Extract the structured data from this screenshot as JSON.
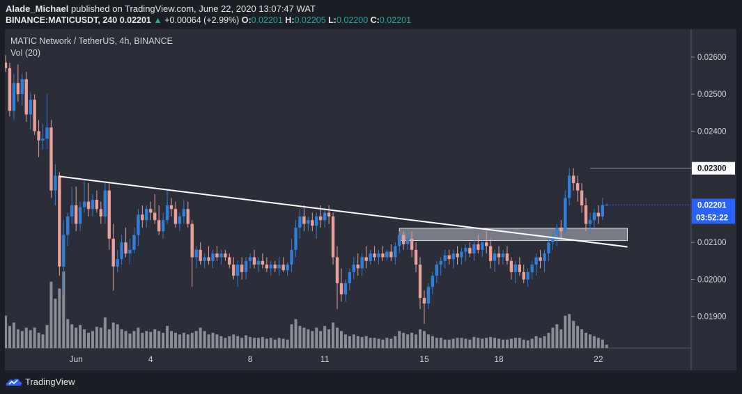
{
  "header": {
    "author": "Alade_Michael",
    "published_text": "published on TradingView.com, June 22, 2020 13:07:47 WAT",
    "symbol": "BINANCE:MATICUSDT, 240",
    "last": "0.02201",
    "change_arrow": "▲",
    "change": "+0.00064 (+2.99%)",
    "o_label": "O:",
    "o_value": "0.02201",
    "h_label": "H:",
    "h_value": "0.02205",
    "l_label": "L:",
    "l_value": "0.02200",
    "c_label": "C:",
    "c_value": "0.02201"
  },
  "legend": {
    "title": "MATIC Network / TetherUS, 4h, BINANCE",
    "volume": "Vol (20)"
  },
  "footer": {
    "brand": "TradingView"
  },
  "colors": {
    "bull": "#2f7fd8",
    "bear": "#e8a09a",
    "volume": "#8a8d95",
    "trendline": "#ffffff",
    "zone": "#b8bcc6",
    "price_label": "#2962ff"
  },
  "chart_data": {
    "type": "candlestick",
    "timeframe": "4h",
    "y_ticks": [
      0.019,
      0.02,
      0.021,
      0.023,
      0.024,
      0.025,
      0.026
    ],
    "y_tick_labels": [
      "0.01900",
      "0.02000",
      "0.02100",
      "0.02300",
      "0.02400",
      "0.02500",
      "0.02600"
    ],
    "ylim": [
      0.01815,
      0.02675
    ],
    "x_tick_labels": [
      {
        "bar": 17,
        "label": "Jun"
      },
      {
        "bar": 35,
        "label": "4"
      },
      {
        "bar": 59,
        "label": "8"
      },
      {
        "bar": 77,
        "label": "11"
      },
      {
        "bar": 101,
        "label": "15"
      },
      {
        "bar": 119,
        "label": "18"
      },
      {
        "bar": 143,
        "label": "22"
      }
    ],
    "current_price": {
      "value": 0.02201,
      "label": "0.02201",
      "countdown": "03:52:22"
    },
    "resistance_label": {
      "value": 0.023,
      "label": "0.02300"
    },
    "trendline": {
      "start": {
        "bar": 13,
        "price": 0.02278
      },
      "end": {
        "bar": 150,
        "price": 0.02088
      }
    },
    "zone": {
      "bar_start": 95,
      "bar_end": 150,
      "top": 0.02138,
      "bottom": 0.02105
    },
    "candles": [
      [
        0.02585,
        0.02605,
        0.0256,
        0.0257,
        38
      ],
      [
        0.0257,
        0.02585,
        0.0244,
        0.02455,
        26
      ],
      [
        0.02455,
        0.02555,
        0.0243,
        0.0253,
        30
      ],
      [
        0.0253,
        0.0258,
        0.0248,
        0.025,
        22
      ],
      [
        0.025,
        0.02555,
        0.0247,
        0.0254,
        20
      ],
      [
        0.0254,
        0.0256,
        0.02425,
        0.02445,
        24
      ],
      [
        0.02445,
        0.02505,
        0.02405,
        0.02485,
        21
      ],
      [
        0.02485,
        0.025,
        0.0239,
        0.024,
        24
      ],
      [
        0.024,
        0.0243,
        0.0233,
        0.02375,
        18
      ],
      [
        0.02375,
        0.0242,
        0.0235,
        0.0238,
        16
      ],
      [
        0.0238,
        0.025,
        0.0235,
        0.0241,
        27
      ],
      [
        0.0241,
        0.0243,
        0.0222,
        0.0224,
        78
      ],
      [
        0.0224,
        0.0231,
        0.022,
        0.0228,
        58
      ],
      [
        0.0228,
        0.0229,
        0.0201,
        0.02035,
        70
      ],
      [
        0.02035,
        0.0216,
        0.0196,
        0.0212,
        90
      ],
      [
        0.0212,
        0.0218,
        0.0209,
        0.0217,
        34
      ],
      [
        0.0217,
        0.0225,
        0.0215,
        0.022,
        28
      ],
      [
        0.022,
        0.0225,
        0.0213,
        0.0215,
        24
      ],
      [
        0.0215,
        0.0221,
        0.0213,
        0.02195,
        27
      ],
      [
        0.02195,
        0.0227,
        0.0218,
        0.0221,
        22
      ],
      [
        0.0221,
        0.0226,
        0.0217,
        0.0219,
        18
      ],
      [
        0.0219,
        0.0223,
        0.0217,
        0.02215,
        20
      ],
      [
        0.02215,
        0.0224,
        0.0218,
        0.0219,
        25
      ],
      [
        0.0219,
        0.0221,
        0.0215,
        0.0217,
        24
      ],
      [
        0.0217,
        0.0226,
        0.0215,
        0.0224,
        36
      ],
      [
        0.0224,
        0.0226,
        0.0208,
        0.0211,
        22
      ],
      [
        0.0211,
        0.0215,
        0.0197,
        0.02035,
        30
      ],
      [
        0.02035,
        0.0208,
        0.0202,
        0.02055,
        28
      ],
      [
        0.02055,
        0.0212,
        0.0204,
        0.021,
        22
      ],
      [
        0.021,
        0.0214,
        0.0206,
        0.0207,
        20
      ],
      [
        0.0207,
        0.0211,
        0.0204,
        0.0208,
        17
      ],
      [
        0.0208,
        0.0214,
        0.0207,
        0.0212,
        20
      ],
      [
        0.0212,
        0.0219,
        0.0209,
        0.02175,
        24
      ],
      [
        0.02175,
        0.022,
        0.0214,
        0.0216,
        18
      ],
      [
        0.0216,
        0.022,
        0.0214,
        0.0219,
        20
      ],
      [
        0.0219,
        0.0221,
        0.0216,
        0.0218,
        19
      ],
      [
        0.0218,
        0.0223,
        0.0215,
        0.0216,
        22
      ],
      [
        0.0216,
        0.022,
        0.0212,
        0.0213,
        20
      ],
      [
        0.0213,
        0.0218,
        0.0211,
        0.0216,
        18
      ],
      [
        0.0216,
        0.0224,
        0.0215,
        0.022,
        26
      ],
      [
        0.022,
        0.0222,
        0.0217,
        0.0219,
        20
      ],
      [
        0.0219,
        0.0221,
        0.0214,
        0.0215,
        18
      ],
      [
        0.0215,
        0.0218,
        0.0213,
        0.0217,
        16
      ],
      [
        0.0217,
        0.02215,
        0.0215,
        0.0219,
        18
      ],
      [
        0.0219,
        0.0221,
        0.0214,
        0.0215,
        16
      ],
      [
        0.0215,
        0.0216,
        0.0198,
        0.0206,
        18
      ],
      [
        0.0206,
        0.0209,
        0.0203,
        0.0208,
        20
      ],
      [
        0.0208,
        0.021,
        0.0204,
        0.0205,
        24
      ],
      [
        0.0205,
        0.0207,
        0.0203,
        0.0206,
        20
      ],
      [
        0.0206,
        0.0209,
        0.0204,
        0.0205,
        16
      ],
      [
        0.0205,
        0.0208,
        0.0203,
        0.0207,
        18
      ],
      [
        0.0207,
        0.0209,
        0.0205,
        0.0206,
        16
      ],
      [
        0.0206,
        0.0208,
        0.0204,
        0.0207,
        14
      ],
      [
        0.0207,
        0.0208,
        0.0205,
        0.0206,
        12
      ],
      [
        0.0206,
        0.0207,
        0.0203,
        0.0204,
        14
      ],
      [
        0.0204,
        0.0206,
        0.02,
        0.0201,
        16
      ],
      [
        0.0201,
        0.0205,
        0.0198,
        0.0204,
        14
      ],
      [
        0.0204,
        0.0206,
        0.02,
        0.0202,
        12
      ],
      [
        0.0202,
        0.0206,
        0.02,
        0.0205,
        15
      ],
      [
        0.0205,
        0.0207,
        0.0203,
        0.0206,
        13
      ],
      [
        0.0206,
        0.0208,
        0.0203,
        0.0204,
        12
      ],
      [
        0.0204,
        0.0206,
        0.0202,
        0.0205,
        12
      ],
      [
        0.0205,
        0.0207,
        0.0203,
        0.0204,
        13
      ],
      [
        0.0204,
        0.0206,
        0.0202,
        0.0203,
        11
      ],
      [
        0.0203,
        0.0205,
        0.0201,
        0.0204,
        12
      ],
      [
        0.0204,
        0.0205,
        0.0202,
        0.0203,
        10
      ],
      [
        0.0203,
        0.0206,
        0.0201,
        0.0204,
        12
      ],
      [
        0.0204,
        0.0206,
        0.0202,
        0.02025,
        11
      ],
      [
        0.02025,
        0.02045,
        0.0201,
        0.0204,
        10
      ],
      [
        0.0204,
        0.0211,
        0.0202,
        0.0208,
        28
      ],
      [
        0.0208,
        0.0216,
        0.0206,
        0.0214,
        34
      ],
      [
        0.0214,
        0.0219,
        0.0211,
        0.0217,
        26
      ],
      [
        0.0217,
        0.022,
        0.0213,
        0.0215,
        24
      ],
      [
        0.0215,
        0.0217,
        0.0213,
        0.0216,
        22
      ],
      [
        0.0216,
        0.0218,
        0.0213,
        0.02145,
        20
      ],
      [
        0.02145,
        0.0218,
        0.0211,
        0.0217,
        24
      ],
      [
        0.0217,
        0.022,
        0.0214,
        0.0216,
        20
      ],
      [
        0.0216,
        0.02195,
        0.0214,
        0.0218,
        26
      ],
      [
        0.0218,
        0.022,
        0.0215,
        0.0217,
        22
      ],
      [
        0.0217,
        0.0218,
        0.0204,
        0.0206,
        30
      ],
      [
        0.0206,
        0.0209,
        0.0192,
        0.0199,
        24
      ],
      [
        0.0199,
        0.0203,
        0.0194,
        0.0196,
        20
      ],
      [
        0.0196,
        0.02,
        0.0194,
        0.0199,
        16
      ],
      [
        0.0199,
        0.0203,
        0.0197,
        0.0202,
        14
      ],
      [
        0.0202,
        0.0206,
        0.02,
        0.0204,
        16
      ],
      [
        0.0204,
        0.0207,
        0.0201,
        0.0203,
        14
      ],
      [
        0.0203,
        0.0207,
        0.0201,
        0.0206,
        13
      ],
      [
        0.0206,
        0.0209,
        0.0203,
        0.0205,
        14
      ],
      [
        0.0205,
        0.0208,
        0.0204,
        0.0207,
        12
      ],
      [
        0.0207,
        0.0209,
        0.0205,
        0.0206,
        12
      ],
      [
        0.0206,
        0.0208,
        0.0204,
        0.0207,
        11
      ],
      [
        0.0207,
        0.0209,
        0.0205,
        0.0206,
        10
      ],
      [
        0.0206,
        0.0208,
        0.0205,
        0.02075,
        12
      ],
      [
        0.02075,
        0.02095,
        0.0205,
        0.0206,
        11
      ],
      [
        0.0206,
        0.021,
        0.0204,
        0.0209,
        14
      ],
      [
        0.0209,
        0.0213,
        0.0207,
        0.0212,
        20
      ],
      [
        0.0212,
        0.0213,
        0.0208,
        0.02095,
        18
      ],
      [
        0.02095,
        0.0213,
        0.0208,
        0.0211,
        16
      ],
      [
        0.0211,
        0.0213,
        0.0206,
        0.0208,
        18
      ],
      [
        0.0208,
        0.021,
        0.0202,
        0.0204,
        16
      ],
      [
        0.0204,
        0.0206,
        0.0192,
        0.0195,
        22
      ],
      [
        0.0195,
        0.0197,
        0.0188,
        0.01935,
        20
      ],
      [
        0.01935,
        0.0199,
        0.0192,
        0.0198,
        16
      ],
      [
        0.0198,
        0.0202,
        0.0196,
        0.0201,
        14
      ],
      [
        0.0201,
        0.0205,
        0.0199,
        0.0204,
        12
      ],
      [
        0.0204,
        0.0206,
        0.0201,
        0.0205,
        12
      ],
      [
        0.0205,
        0.0208,
        0.0203,
        0.02065,
        10
      ],
      [
        0.02065,
        0.0208,
        0.0204,
        0.02055,
        10
      ],
      [
        0.02055,
        0.0208,
        0.0203,
        0.0207,
        11
      ],
      [
        0.0207,
        0.0209,
        0.0204,
        0.0206,
        12
      ],
      [
        0.0206,
        0.02085,
        0.0204,
        0.02075,
        12
      ],
      [
        0.02075,
        0.02095,
        0.0205,
        0.02085,
        11
      ],
      [
        0.02085,
        0.021,
        0.0206,
        0.0207,
        10
      ],
      [
        0.0207,
        0.0211,
        0.0205,
        0.02095,
        13
      ],
      [
        0.02095,
        0.0212,
        0.0207,
        0.0208,
        12
      ],
      [
        0.0208,
        0.0211,
        0.0206,
        0.021,
        11
      ],
      [
        0.021,
        0.0213,
        0.0207,
        0.0209,
        12
      ],
      [
        0.0209,
        0.0211,
        0.0203,
        0.0205,
        13
      ],
      [
        0.0205,
        0.0208,
        0.0202,
        0.0207,
        12
      ],
      [
        0.0207,
        0.0209,
        0.0204,
        0.0206,
        11
      ],
      [
        0.0206,
        0.0208,
        0.0204,
        0.0207,
        10
      ],
      [
        0.0207,
        0.0209,
        0.0204,
        0.0205,
        10
      ],
      [
        0.0205,
        0.0206,
        0.02,
        0.0202,
        11
      ],
      [
        0.0202,
        0.0205,
        0.0199,
        0.0204,
        12
      ],
      [
        0.0204,
        0.0206,
        0.0201,
        0.0202,
        12
      ],
      [
        0.0202,
        0.0204,
        0.0199,
        0.02,
        10
      ],
      [
        0.02,
        0.0203,
        0.0198,
        0.0202,
        9
      ],
      [
        0.0202,
        0.0205,
        0.02,
        0.0204,
        11
      ],
      [
        0.0204,
        0.0207,
        0.0201,
        0.0206,
        14
      ],
      [
        0.0206,
        0.0208,
        0.0203,
        0.0205,
        12
      ],
      [
        0.0205,
        0.0208,
        0.0202,
        0.0207,
        14
      ],
      [
        0.0207,
        0.0211,
        0.0205,
        0.021,
        18
      ],
      [
        0.021,
        0.0213,
        0.0208,
        0.0212,
        24
      ],
      [
        0.0212,
        0.0215,
        0.0209,
        0.0214,
        28
      ],
      [
        0.0214,
        0.0216,
        0.0211,
        0.0213,
        22
      ],
      [
        0.0213,
        0.0224,
        0.0212,
        0.0222,
        38
      ],
      [
        0.0222,
        0.023,
        0.022,
        0.0228,
        40
      ],
      [
        0.0228,
        0.023,
        0.0224,
        0.0226,
        32
      ],
      [
        0.0226,
        0.0228,
        0.0221,
        0.0224,
        26
      ],
      [
        0.0224,
        0.0226,
        0.0218,
        0.022,
        22
      ],
      [
        0.022,
        0.0222,
        0.0213,
        0.0215,
        18
      ],
      [
        0.0215,
        0.0218,
        0.0212,
        0.0216,
        16
      ],
      [
        0.0216,
        0.0219,
        0.0214,
        0.0218,
        14
      ],
      [
        0.0218,
        0.022,
        0.0215,
        0.0217,
        12
      ],
      [
        0.0217,
        0.0222,
        0.0216,
        0.02201,
        10
      ],
      [
        0.02201,
        0.02205,
        0.022,
        0.02201,
        4
      ]
    ]
  }
}
